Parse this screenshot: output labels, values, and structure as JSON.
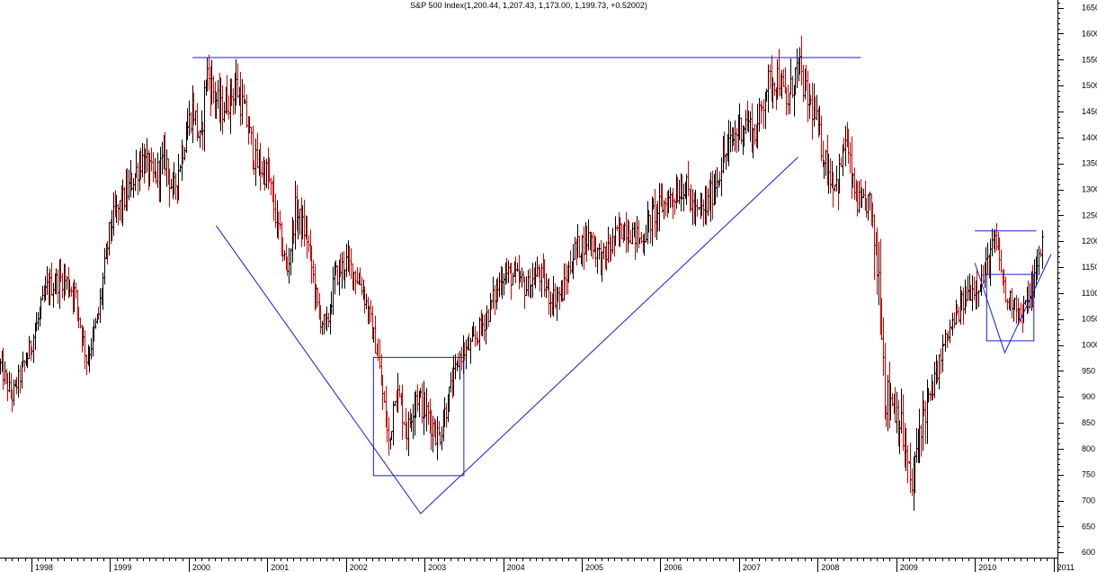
{
  "chart_data": {
    "type": "ohlc-bar",
    "title": "S&P 500 Index(1,200.44, 1,207.43, 1,173.00, 1,199.73, +0.52002)",
    "colors": {
      "up": "#000000",
      "down": "#cc0000",
      "annotation": "#1a1acc",
      "axis": "#000000",
      "background": "#ffffff"
    },
    "y_axis": {
      "position": "right",
      "range": [
        590,
        1665
      ],
      "ticks": [
        600,
        650,
        700,
        750,
        800,
        850,
        900,
        950,
        1000,
        1050,
        1100,
        1150,
        1200,
        1250,
        1300,
        1350,
        1400,
        1450,
        1500,
        1550,
        1600,
        1650
      ]
    },
    "x_axis": {
      "range": [
        1997.6,
        2011.05
      ],
      "year_labels": [
        "1998",
        "1999",
        "2000",
        "2001",
        "2002",
        "2003",
        "2004",
        "2005",
        "2006",
        "2007",
        "2008",
        "2009",
        "2010",
        "2011"
      ]
    },
    "anchors": [
      [
        1997.6,
        960
      ],
      [
        1997.75,
        900
      ],
      [
        1997.95,
        980
      ],
      [
        1998.2,
        1110
      ],
      [
        1998.4,
        1130
      ],
      [
        1998.55,
        1100
      ],
      [
        1998.7,
        970
      ],
      [
        1998.85,
        1060
      ],
      [
        1999.0,
        1230
      ],
      [
        1999.2,
        1290
      ],
      [
        1999.4,
        1360
      ],
      [
        1999.55,
        1320
      ],
      [
        1999.7,
        1360
      ],
      [
        1999.8,
        1290
      ],
      [
        1999.95,
        1400
      ],
      [
        2000.05,
        1460
      ],
      [
        2000.15,
        1380
      ],
      [
        2000.22,
        1530
      ],
      [
        2000.4,
        1450
      ],
      [
        2000.6,
        1500
      ],
      [
        2000.72,
        1440
      ],
      [
        2000.85,
        1350
      ],
      [
        2001.0,
        1330
      ],
      [
        2001.1,
        1250
      ],
      [
        2001.25,
        1140
      ],
      [
        2001.35,
        1260
      ],
      [
        2001.5,
        1210
      ],
      [
        2001.65,
        1060
      ],
      [
        2001.75,
        1030
      ],
      [
        2001.85,
        1130
      ],
      [
        2002.0,
        1160
      ],
      [
        2002.1,
        1140
      ],
      [
        2002.2,
        1115
      ],
      [
        2002.3,
        1050
      ],
      [
        2002.4,
        980
      ],
      [
        2002.5,
        860
      ],
      [
        2002.55,
        800
      ],
      [
        2002.62,
        920
      ],
      [
        2002.7,
        880
      ],
      [
        2002.78,
        830
      ],
      [
        2002.88,
        910
      ],
      [
        2002.98,
        880
      ],
      [
        2003.05,
        860
      ],
      [
        2003.18,
        820
      ],
      [
        2003.3,
        900
      ],
      [
        2003.45,
        980
      ],
      [
        2003.6,
        1000
      ],
      [
        2003.8,
        1060
      ],
      [
        2004.0,
        1140
      ],
      [
        2004.15,
        1130
      ],
      [
        2004.3,
        1110
      ],
      [
        2004.45,
        1140
      ],
      [
        2004.6,
        1090
      ],
      [
        2004.75,
        1100
      ],
      [
        2004.9,
        1180
      ],
      [
        2005.1,
        1210
      ],
      [
        2005.25,
        1160
      ],
      [
        2005.4,
        1200
      ],
      [
        2005.55,
        1230
      ],
      [
        2005.75,
        1200
      ],
      [
        2005.9,
        1250
      ],
      [
        2006.1,
        1280
      ],
      [
        2006.3,
        1310
      ],
      [
        2006.45,
        1250
      ],
      [
        2006.6,
        1270
      ],
      [
        2006.8,
        1360
      ],
      [
        2007.0,
        1420
      ],
      [
        2007.1,
        1430
      ],
      [
        2007.2,
        1400
      ],
      [
        2007.35,
        1500
      ],
      [
        2007.5,
        1520
      ],
      [
        2007.6,
        1460
      ],
      [
        2007.75,
        1540
      ],
      [
        2007.85,
        1480
      ],
      [
        2007.95,
        1450
      ],
      [
        2008.05,
        1380
      ],
      [
        2008.15,
        1330
      ],
      [
        2008.25,
        1310
      ],
      [
        2008.35,
        1400
      ],
      [
        2008.45,
        1300
      ],
      [
        2008.55,
        1260
      ],
      [
        2008.65,
        1280
      ],
      [
        2008.72,
        1200
      ],
      [
        2008.8,
        1100
      ],
      [
        2008.85,
        900
      ],
      [
        2008.95,
        900
      ],
      [
        2009.05,
        850
      ],
      [
        2009.12,
        780
      ],
      [
        2009.2,
        720
      ],
      [
        2009.3,
        850
      ],
      [
        2009.45,
        910
      ],
      [
        2009.6,
        1000
      ],
      [
        2009.75,
        1050
      ],
      [
        2009.9,
        1100
      ],
      [
        2010.1,
        1130
      ],
      [
        2010.25,
        1200
      ],
      [
        2010.33,
        1150
      ],
      [
        2010.4,
        1080
      ],
      [
        2010.5,
        1090
      ],
      [
        2010.58,
        1050
      ],
      [
        2010.7,
        1100
      ],
      [
        2010.78,
        1140
      ],
      [
        2010.85,
        1200
      ]
    ],
    "annotations": [
      {
        "kind": "line",
        "points": [
          [
            2000.05,
            1554
          ],
          [
            2008.55,
            1554
          ]
        ]
      },
      {
        "kind": "line",
        "points": [
          [
            2000.35,
            1230
          ],
          [
            2002.95,
            675
          ],
          [
            2007.75,
            1362
          ]
        ]
      },
      {
        "kind": "rect",
        "x": [
          2002.35,
          2003.5
        ],
        "y": [
          748,
          976
        ]
      },
      {
        "kind": "line",
        "points": [
          [
            2010.0,
            1220
          ],
          [
            2010.78,
            1220
          ]
        ]
      },
      {
        "kind": "line",
        "points": [
          [
            2010.0,
            1158
          ],
          [
            2010.38,
            985
          ],
          [
            2010.97,
            1175
          ]
        ]
      },
      {
        "kind": "rect",
        "x": [
          2010.15,
          2010.75
        ],
        "y": [
          1008,
          1136
        ]
      }
    ]
  }
}
